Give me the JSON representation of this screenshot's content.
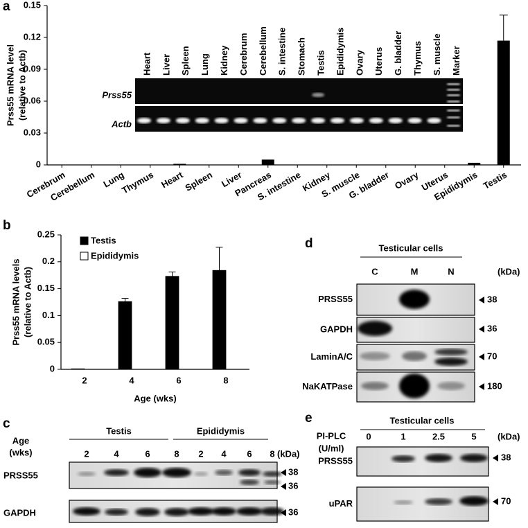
{
  "chart_data": [
    {
      "type": "bar",
      "panel_label": "a",
      "ylabel": [
        "Prss55 mRNA level",
        "(relative to Actb)"
      ],
      "categories": [
        "Cerebrum",
        "Cerebellum",
        "Lung",
        "Thymus",
        "Heart",
        "Spleen",
        "Liver",
        "Pancreas",
        "S. intestine",
        "Kidney",
        "S. muscle",
        "G. bladder",
        "Ovary",
        "Uterus",
        "Epididymis",
        "Testis"
      ],
      "values": [
        0,
        0,
        0,
        0,
        0.001,
        0,
        0,
        0.005,
        0,
        0,
        0,
        0,
        0,
        0,
        0.002,
        0.117
      ],
      "errors": [
        null,
        null,
        null,
        null,
        null,
        null,
        null,
        null,
        null,
        null,
        null,
        null,
        null,
        null,
        null,
        0.024
      ],
      "color": "#000000",
      "ylim": [
        0,
        0.15
      ],
      "yticks": [
        0,
        0.03,
        0.06,
        0.09,
        0.12,
        0.15
      ],
      "grid": false,
      "inset": {
        "lanes": [
          "Heart",
          "Liver",
          "Spleen",
          "Lung",
          "Kidney",
          "Cerebrum",
          "Cerebellum",
          "S. intestine",
          "Stomach",
          "Testis",
          "Epididymis",
          "Ovary",
          "Uterus",
          "G. bladder",
          "Thymus",
          "S. muscle",
          "Marker"
        ],
        "rows": [
          "Prss55",
          "Actb"
        ]
      }
    },
    {
      "type": "bar",
      "panel_label": "b",
      "ylabel": [
        "Prss55 mRNA levels",
        "(relative to Actb)"
      ],
      "xlabel": "Age (wks)",
      "categories": [
        "2",
        "4",
        "6",
        "8"
      ],
      "series": [
        {
          "name": "Testis",
          "color": "#000000",
          "values": [
            0.001,
            0.126,
            0.173,
            0.184
          ],
          "errors": [
            null,
            0.006,
            0.008,
            0.043
          ]
        },
        {
          "name": "Epididymis",
          "color": "#ffffff",
          "values": [
            0,
            0,
            0,
            0
          ]
        }
      ],
      "ylim": [
        0,
        0.25
      ],
      "yticks": [
        0,
        0.05,
        0.1,
        0.15,
        0.2,
        0.25
      ],
      "grid": false,
      "legend": "upper-left"
    }
  ],
  "panel_c": {
    "label": "c",
    "age_label": [
      "Age",
      "(wks)"
    ],
    "groups": [
      "Testis",
      "Epididymis"
    ],
    "lanes": [
      "2",
      "4",
      "6",
      "8",
      "2",
      "4",
      "6",
      "8"
    ],
    "unit": "(kDa)",
    "rows": [
      {
        "label": "PRSS55",
        "markers": [
          "38",
          "36"
        ]
      },
      {
        "label": "GAPDH",
        "markers": [
          "36"
        ]
      }
    ]
  },
  "panel_d": {
    "label": "d",
    "header": "Testicular cells",
    "lanes": [
      "C",
      "M",
      "N"
    ],
    "unit": "(kDa)",
    "rows": [
      {
        "label": "PRSS55",
        "markers": [
          "38"
        ]
      },
      {
        "label": "GAPDH",
        "markers": [
          "36"
        ]
      },
      {
        "label": "LaminA/C",
        "markers": [
          "70"
        ]
      },
      {
        "label": "NaKATPase",
        "markers": [
          "180"
        ]
      }
    ]
  },
  "panel_e": {
    "label": "e",
    "treatment": [
      "PI-PLC",
      "(U/ml)"
    ],
    "header": "Testicular cells",
    "lanes": [
      "0",
      "1",
      "2.5",
      "5"
    ],
    "unit": "(kDa)",
    "rows": [
      {
        "label": "PRSS55",
        "markers": [
          "38"
        ]
      },
      {
        "label": "uPAR",
        "markers": [
          "70"
        ]
      }
    ]
  }
}
